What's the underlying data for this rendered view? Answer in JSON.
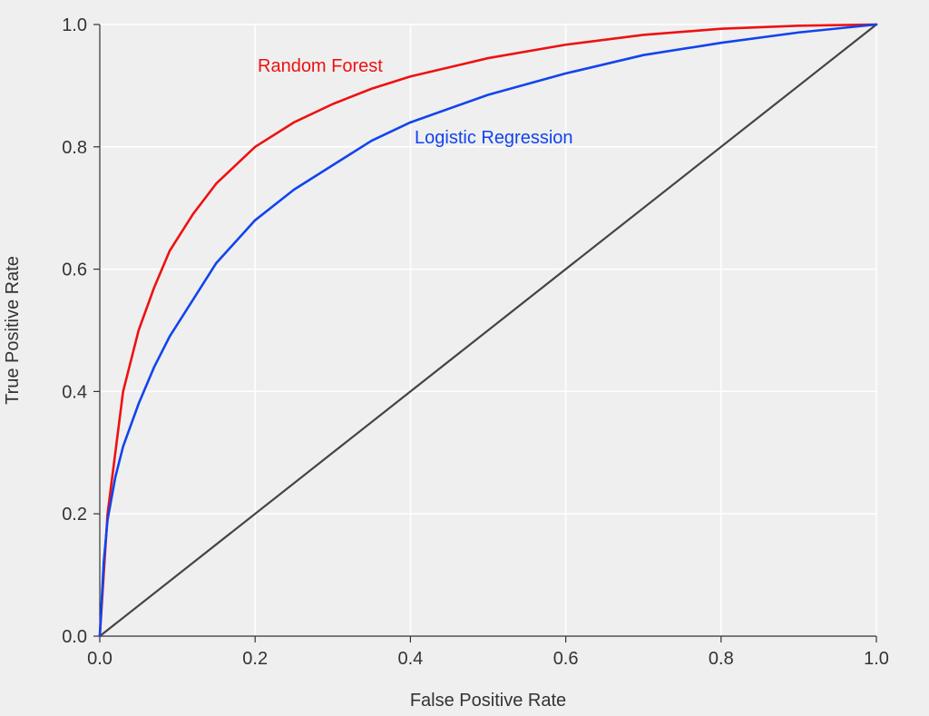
{
  "chart_data": {
    "type": "line",
    "title": "",
    "xlabel": "False Positive Rate",
    "ylabel": "True Positive Rate",
    "xlim": [
      0,
      1
    ],
    "ylim": [
      0,
      1
    ],
    "grid": true,
    "xticks": [
      "0.0",
      "0.2",
      "0.4",
      "0.6",
      "0.8",
      "1.0"
    ],
    "yticks": [
      "0.0",
      "0.2",
      "0.4",
      "0.6",
      "0.8",
      "1.0"
    ],
    "background": "#efefef",
    "series": [
      {
        "name": "Random Forest",
        "color": "#ee1111",
        "x": [
          0,
          0.005,
          0.01,
          0.02,
          0.03,
          0.05,
          0.07,
          0.09,
          0.12,
          0.15,
          0.2,
          0.25,
          0.3,
          0.35,
          0.4,
          0.5,
          0.6,
          0.7,
          0.8,
          0.9,
          1.0
        ],
        "y": [
          0,
          0.1,
          0.2,
          0.3,
          0.4,
          0.5,
          0.57,
          0.63,
          0.69,
          0.74,
          0.8,
          0.84,
          0.87,
          0.895,
          0.915,
          0.945,
          0.967,
          0.983,
          0.993,
          0.998,
          1.0
        ]
      },
      {
        "name": "Logistic Regression",
        "color": "#1144ee",
        "x": [
          0,
          0.005,
          0.01,
          0.02,
          0.03,
          0.05,
          0.07,
          0.09,
          0.12,
          0.15,
          0.2,
          0.25,
          0.3,
          0.35,
          0.4,
          0.5,
          0.6,
          0.7,
          0.8,
          0.9,
          1.0
        ],
        "y": [
          0,
          0.12,
          0.19,
          0.26,
          0.31,
          0.38,
          0.44,
          0.49,
          0.55,
          0.61,
          0.68,
          0.73,
          0.77,
          0.81,
          0.84,
          0.885,
          0.92,
          0.95,
          0.97,
          0.987,
          1.0
        ]
      },
      {
        "name": "",
        "color": "#444444",
        "x": [
          0,
          1
        ],
        "y": [
          0,
          1
        ]
      }
    ]
  }
}
